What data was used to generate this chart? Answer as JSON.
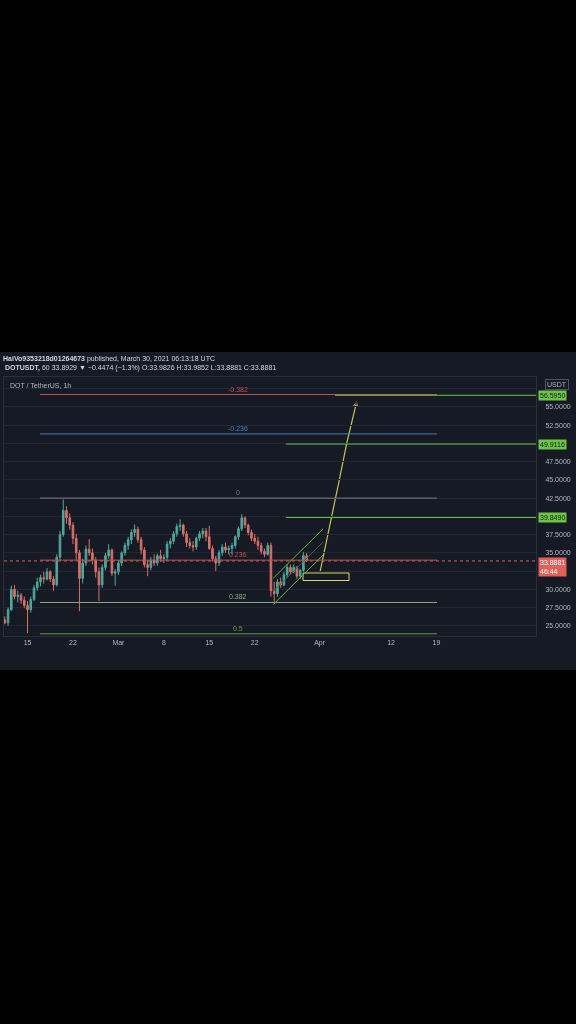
{
  "chart_data": {
    "type": "candlestick",
    "title": "HaiVo9353218d01264673 published, March 30, 2021 06:13:18 UTC",
    "subtitle": "DOTUSDT, 60 33.8929 ▼ −0.4474 (−1.3%) O:33.9826 H:33.9852 L:33.8881 C:33.8881",
    "ylabel": "USDT",
    "annotations": [
      "DOT / TetherUS, 1h"
    ],
    "x": [
      "2021-02-11T12:00",
      "2021-02-12T00:00",
      "2021-02-12T12:00",
      "2021-02-13T00:00",
      "2021-02-13T12:00",
      "2021-02-14T00:00",
      "2021-02-14T12:00",
      "2021-02-15T00:00",
      "2021-02-15T12:00",
      "2021-02-16T00:00",
      "2021-02-16T12:00",
      "2021-02-17T00:00",
      "2021-02-17T12:00",
      "2021-02-18T00:00",
      "2021-02-18T12:00",
      "2021-02-19T00:00",
      "2021-02-19T12:00",
      "2021-02-20T00:00",
      "2021-02-20T12:00",
      "2021-02-21T00:00",
      "2021-02-21T12:00",
      "2021-02-22T00:00",
      "2021-02-22T12:00",
      "2021-02-23T00:00",
      "2021-02-23T12:00",
      "2021-02-24T00:00",
      "2021-02-24T12:00",
      "2021-02-25T00:00",
      "2021-02-25T12:00",
      "2021-02-26T00:00",
      "2021-02-26T12:00",
      "2021-02-27T00:00",
      "2021-02-27T12:00",
      "2021-02-28T00:00",
      "2021-02-28T12:00",
      "2021-03-01T00:00",
      "2021-03-01T12:00",
      "2021-03-02T00:00",
      "2021-03-02T12:00",
      "2021-03-03T00:00",
      "2021-03-03T12:00",
      "2021-03-04T00:00",
      "2021-03-04T12:00",
      "2021-03-05T00:00",
      "2021-03-05T12:00",
      "2021-03-06T00:00",
      "2021-03-06T12:00",
      "2021-03-07T00:00",
      "2021-03-07T12:00",
      "2021-03-08T00:00",
      "2021-03-08T12:00",
      "2021-03-09T00:00",
      "2021-03-09T12:00",
      "2021-03-10T00:00",
      "2021-03-10T12:00",
      "2021-03-11T00:00",
      "2021-03-11T12:00",
      "2021-03-12T00:00",
      "2021-03-12T12:00",
      "2021-03-13T00:00",
      "2021-03-13T12:00",
      "2021-03-14T00:00",
      "2021-03-14T12:00",
      "2021-03-15T00:00",
      "2021-03-15T12:00",
      "2021-03-16T00:00",
      "2021-03-16T12:00",
      "2021-03-17T00:00",
      "2021-03-17T12:00",
      "2021-03-18T00:00",
      "2021-03-18T12:00",
      "2021-03-19T00:00",
      "2021-03-19T12:00",
      "2021-03-20T00:00",
      "2021-03-20T12:00",
      "2021-03-21T00:00",
      "2021-03-21T12:00",
      "2021-03-22T00:00",
      "2021-03-22T12:00",
      "2021-03-23T00:00",
      "2021-03-23T12:00",
      "2021-03-24T00:00",
      "2021-03-24T12:00",
      "2021-03-25T00:00",
      "2021-03-25T12:00",
      "2021-03-26T00:00",
      "2021-03-26T12:00",
      "2021-03-27T00:00",
      "2021-03-27T12:00",
      "2021-03-28T00:00",
      "2021-03-28T12:00",
      "2021-03-29T00:00",
      "2021-03-29T12:00",
      "2021-03-30T00:00"
    ],
    "ohlc": [
      [
        25.8,
        26.3,
        25.2,
        25.4
      ],
      [
        25.4,
        27.5,
        25.0,
        27.2
      ],
      [
        27.2,
        30.5,
        27.0,
        30.0
      ],
      [
        30.0,
        30.6,
        28.6,
        29.0
      ],
      [
        29.0,
        29.8,
        28.2,
        29.2
      ],
      [
        29.2,
        29.5,
        28.0,
        28.5
      ],
      [
        28.5,
        29.0,
        27.4,
        27.8
      ],
      [
        27.8,
        28.4,
        24.0,
        27.2
      ],
      [
        27.2,
        29.0,
        26.8,
        28.6
      ],
      [
        28.6,
        30.6,
        28.4,
        30.2
      ],
      [
        30.2,
        31.6,
        29.8,
        31.0
      ],
      [
        31.0,
        32.0,
        30.4,
        31.6
      ],
      [
        31.6,
        32.4,
        30.8,
        31.4
      ],
      [
        31.4,
        32.9,
        31.2,
        32.4
      ],
      [
        32.4,
        32.6,
        31.0,
        31.4
      ],
      [
        31.4,
        31.8,
        29.8,
        30.6
      ],
      [
        30.6,
        34.8,
        30.4,
        34.4
      ],
      [
        34.4,
        38.0,
        34.0,
        37.5
      ],
      [
        37.5,
        42.3,
        37.2,
        40.8
      ],
      [
        40.8,
        41.4,
        39.0,
        39.8
      ],
      [
        39.8,
        40.4,
        38.2,
        38.8
      ],
      [
        38.8,
        39.2,
        36.2,
        37.0
      ],
      [
        37.0,
        37.6,
        34.0,
        35.0
      ],
      [
        35.0,
        35.4,
        27.0,
        31.5
      ],
      [
        31.5,
        34.2,
        30.8,
        33.6
      ],
      [
        33.6,
        36.0,
        33.2,
        35.5
      ],
      [
        35.5,
        36.9,
        34.6,
        35.0
      ],
      [
        35.0,
        35.6,
        33.4,
        34.0
      ],
      [
        34.0,
        34.4,
        31.6,
        32.4
      ],
      [
        32.4,
        33.0,
        28.4,
        30.6
      ],
      [
        30.6,
        33.4,
        30.2,
        33.0
      ],
      [
        33.0,
        35.0,
        32.6,
        34.6
      ],
      [
        34.6,
        36.2,
        34.2,
        35.4
      ],
      [
        35.4,
        35.6,
        31.8,
        32.2
      ],
      [
        32.2,
        32.8,
        30.5,
        32.4
      ],
      [
        32.4,
        34.0,
        32.0,
        33.6
      ],
      [
        33.6,
        35.2,
        33.2,
        35.0
      ],
      [
        35.0,
        36.4,
        34.6,
        36.0
      ],
      [
        36.0,
        37.2,
        35.4,
        36.8
      ],
      [
        36.8,
        38.2,
        36.2,
        37.8
      ],
      [
        37.8,
        38.9,
        37.2,
        38.2
      ],
      [
        38.2,
        38.6,
        36.4,
        36.8
      ],
      [
        36.8,
        37.2,
        34.8,
        35.4
      ],
      [
        35.4,
        35.8,
        33.0,
        33.4
      ],
      [
        33.4,
        34.0,
        31.8,
        33.0
      ],
      [
        33.0,
        34.4,
        32.6,
        34.0
      ],
      [
        34.0,
        34.8,
        33.2,
        33.6
      ],
      [
        33.6,
        34.9,
        33.2,
        34.6
      ],
      [
        34.6,
        35.4,
        33.8,
        34.2
      ],
      [
        34.2,
        34.8,
        33.6,
        34.4
      ],
      [
        34.4,
        36.6,
        34.0,
        36.2
      ],
      [
        36.2,
        37.0,
        35.6,
        36.6
      ],
      [
        36.6,
        38.0,
        36.2,
        37.6
      ],
      [
        37.6,
        39.0,
        37.2,
        38.6
      ],
      [
        38.6,
        39.6,
        38.0,
        38.8
      ],
      [
        38.8,
        39.0,
        37.2,
        37.6
      ],
      [
        37.6,
        38.0,
        35.8,
        36.4
      ],
      [
        36.4,
        37.0,
        35.6,
        36.0
      ],
      [
        36.0,
        36.6,
        35.2,
        35.8
      ],
      [
        35.8,
        37.2,
        35.4,
        37.0
      ],
      [
        37.0,
        38.0,
        36.6,
        37.6
      ],
      [
        37.6,
        38.4,
        37.0,
        38.0
      ],
      [
        38.0,
        38.4,
        36.6,
        37.2
      ],
      [
        37.2,
        38.7,
        35.4,
        35.6
      ],
      [
        35.6,
        36.0,
        33.8,
        34.2
      ],
      [
        34.2,
        34.6,
        32.5,
        33.6
      ],
      [
        33.6,
        35.4,
        33.2,
        35.0
      ],
      [
        35.0,
        36.2,
        34.6,
        35.8
      ],
      [
        35.8,
        36.4,
        35.0,
        35.4
      ],
      [
        35.4,
        36.0,
        34.8,
        35.6
      ],
      [
        35.6,
        36.4,
        34.8,
        36.0
      ],
      [
        36.0,
        37.4,
        35.6,
        37.2
      ],
      [
        37.2,
        38.6,
        36.8,
        38.3
      ],
      [
        38.3,
        40.3,
        38.0,
        39.8
      ],
      [
        39.8,
        40.0,
        38.4,
        38.8
      ],
      [
        38.8,
        39.0,
        37.4,
        37.8
      ],
      [
        37.8,
        38.2,
        36.6,
        37.0
      ],
      [
        37.0,
        37.6,
        36.2,
        36.6
      ],
      [
        36.6,
        37.2,
        35.4,
        36.0
      ],
      [
        36.0,
        36.4,
        34.8,
        35.2
      ],
      [
        35.2,
        35.6,
        34.4,
        34.8
      ],
      [
        34.8,
        36.4,
        34.6,
        36.0
      ],
      [
        36.0,
        36.4,
        29.0,
        29.8
      ],
      [
        29.8,
        31.0,
        28.3,
        29.4
      ],
      [
        29.4,
        31.4,
        29.0,
        31.0
      ],
      [
        31.0,
        31.6,
        30.2,
        30.6
      ],
      [
        30.6,
        32.4,
        30.4,
        32.0
      ],
      [
        32.0,
        33.4,
        31.6,
        33.0
      ],
      [
        33.0,
        33.4,
        32.0,
        32.4
      ],
      [
        32.4,
        33.4,
        32.2,
        33.0
      ],
      [
        33.0,
        33.2,
        31.4,
        31.8
      ],
      [
        31.8,
        32.8,
        31.4,
        32.6
      ],
      [
        32.6,
        35.1,
        32.4,
        34.6
      ],
      [
        34.6,
        35.0,
        33.8,
        33.8881
      ]
    ],
    "colors": [
      "#d4716b",
      "#4fa89c",
      "#4fa89c",
      "#d4716b",
      "#4fa89c",
      "#d4716b",
      "#d4716b",
      "#d4716b",
      "#4fa89c",
      "#4fa89c",
      "#4fa89c",
      "#4fa89c",
      "#d4716b",
      "#4fa89c",
      "#d4716b",
      "#d4716b",
      "#4fa89c",
      "#4fa89c",
      "#4fa89c",
      "#d4716b",
      "#d4716b",
      "#d4716b",
      "#d4716b",
      "#d4716b",
      "#4fa89c",
      "#4fa89c",
      "#d4716b",
      "#d4716b",
      "#d4716b",
      "#d4716b",
      "#4fa89c",
      "#4fa89c",
      "#4fa89c",
      "#d4716b",
      "#4fa89c",
      "#4fa89c",
      "#4fa89c",
      "#4fa89c",
      "#4fa89c",
      "#4fa89c",
      "#4fa89c",
      "#d4716b",
      "#d4716b",
      "#d4716b",
      "#d4716b",
      "#4fa89c",
      "#d4716b",
      "#4fa89c",
      "#d4716b",
      "#4fa89c",
      "#4fa89c",
      "#4fa89c",
      "#4fa89c",
      "#4fa89c",
      "#4fa89c",
      "#d4716b",
      "#d4716b",
      "#d4716b",
      "#d4716b",
      "#4fa89c",
      "#4fa89c",
      "#4fa89c",
      "#d4716b",
      "#d4716b",
      "#d4716b",
      "#d4716b",
      "#4fa89c",
      "#4fa89c",
      "#d4716b",
      "#4fa89c",
      "#4fa89c",
      "#4fa89c",
      "#4fa89c",
      "#4fa89c",
      "#d4716b",
      "#d4716b",
      "#d4716b",
      "#d4716b",
      "#d4716b",
      "#d4716b",
      "#d4716b",
      "#4fa89c",
      "#d4716b",
      "#d4716b",
      "#4fa89c",
      "#d4716b",
      "#4fa89c",
      "#4fa89c",
      "#d4716b",
      "#4fa89c",
      "#d4716b",
      "#4fa89c",
      "#4fa89c",
      "#d4716b"
    ],
    "series": [
      {
        "type": "line",
        "name": "-0.382",
        "color": "#c0504d",
        "x": [
          "2021-02-16T22:00",
          "2021-04-19T02:00"
        ],
        "values": [
          56.7,
          56.7
        ]
      },
      {
        "type": "line",
        "name": "-0.236",
        "color": "#4c7bb5",
        "x": [
          "2021-02-16T22:00",
          "2021-04-19T02:00"
        ],
        "values": [
          51.3,
          51.3
        ]
      },
      {
        "type": "line",
        "name": "0",
        "color": "#787b86",
        "x": [
          "2021-02-16T22:00",
          "2021-04-19T02:00"
        ],
        "values": [
          42.5,
          42.5
        ]
      },
      {
        "type": "line",
        "name": "0.236",
        "color": "#c0504d",
        "x": [
          "2021-02-16T22:00",
          "2021-04-19T02:00"
        ],
        "values": [
          34.0,
          34.0
        ]
      },
      {
        "type": "line",
        "name": "0.382",
        "color": "#8fae84",
        "x": [
          "2021-02-16T22:00",
          "2021-04-19T02:00"
        ],
        "values": [
          28.2,
          28.2
        ]
      },
      {
        "type": "line",
        "name": "0.5",
        "color": "#5e9c4a",
        "x": [
          "2021-02-16T22:00",
          "2021-04-19T02:00"
        ],
        "values": [
          23.9,
          23.9
        ]
      },
      {
        "type": "line",
        "color": "#5fb83a",
        "x": [
          "2021-03-24T20:00",
          "2021-04-01T13:00"
        ],
        "values": [
          31.5,
          38.3
        ]
      },
      {
        "type": "line",
        "color": "#3f6a35",
        "x": [
          "2021-03-24T20:00",
          "2021-04-01T13:00"
        ],
        "values": [
          29.7,
          36.5
        ]
      },
      {
        "type": "line",
        "color": "#5fb83a",
        "x": [
          "2021-03-24T20:00",
          "2021-04-01T13:00"
        ],
        "values": [
          27.9,
          34.7
        ]
      },
      {
        "type": "line",
        "color": "#6cc644",
        "x": [
          "2021-04-03T09:00",
          "2021-05-04T08:00"
        ],
        "values": [
          56.595,
          56.595
        ],
        "value_labels": [
          null,
          "56.5950"
        ]
      },
      {
        "type": "line",
        "color": "#6cc644",
        "x": [
          "2021-03-26T19:00",
          "2021-05-04T08:00"
        ],
        "values": [
          49.9116,
          49.9116
        ],
        "value_labels": [
          null,
          "49.9116"
        ]
      },
      {
        "type": "line",
        "color": "#6cc644",
        "x": [
          "2021-03-26T19:00",
          "2021-05-04T08:00"
        ],
        "values": [
          39.849,
          39.849
        ],
        "value_labels": [
          null,
          "39.8490"
        ]
      }
    ],
    "ref_lines": [
      {
        "axis": "y",
        "value": 33.8881,
        "label": "33.8881\n46:44",
        "color": "#e0605a",
        "line_style": "dotted"
      }
    ],
    "xlim": [
      "2021-02-11T09:00",
      "2021-05-04T08:00"
    ],
    "xticks": [
      {
        "value": "2021-02-15",
        "label": "15"
      },
      {
        "value": "2021-02-22",
        "label": "22"
      },
      {
        "value": "2021-03-01",
        "label": "Mar"
      },
      {
        "value": "2021-03-08",
        "label": "8"
      },
      {
        "value": "2021-03-15",
        "label": "15"
      },
      {
        "value": "2021-03-22",
        "label": "22"
      },
      {
        "value": "2021-04-01",
        "label": "Apr"
      },
      {
        "value": "2021-04-12",
        "label": "12"
      },
      {
        "value": "2021-04-19",
        "label": "19"
      }
    ],
    "ylim": [
      23.6,
      59.1
    ],
    "yticks": [
      {
        "value": 25,
        "label": "25.0000"
      },
      {
        "value": 27.5,
        "label": "27.5000"
      },
      {
        "value": 30,
        "label": "30.0000"
      },
      {
        "value": 32.5,
        "label": null
      },
      {
        "value": 35,
        "label": "35.0000"
      },
      {
        "value": 37.5,
        "label": "37.5000"
      },
      {
        "value": 40,
        "label": null
      },
      {
        "value": 42.5,
        "label": "42.5000"
      },
      {
        "value": 45,
        "label": "45.0000"
      },
      {
        "value": 47.5,
        "label": "47.5000"
      },
      {
        "value": 50,
        "label": null
      },
      {
        "value": 52.5,
        "label": "52.5000"
      },
      {
        "value": 55,
        "label": "55.0000"
      },
      {
        "value": 57.5,
        "label": null
      }
    ],
    "grid": "y"
  }
}
